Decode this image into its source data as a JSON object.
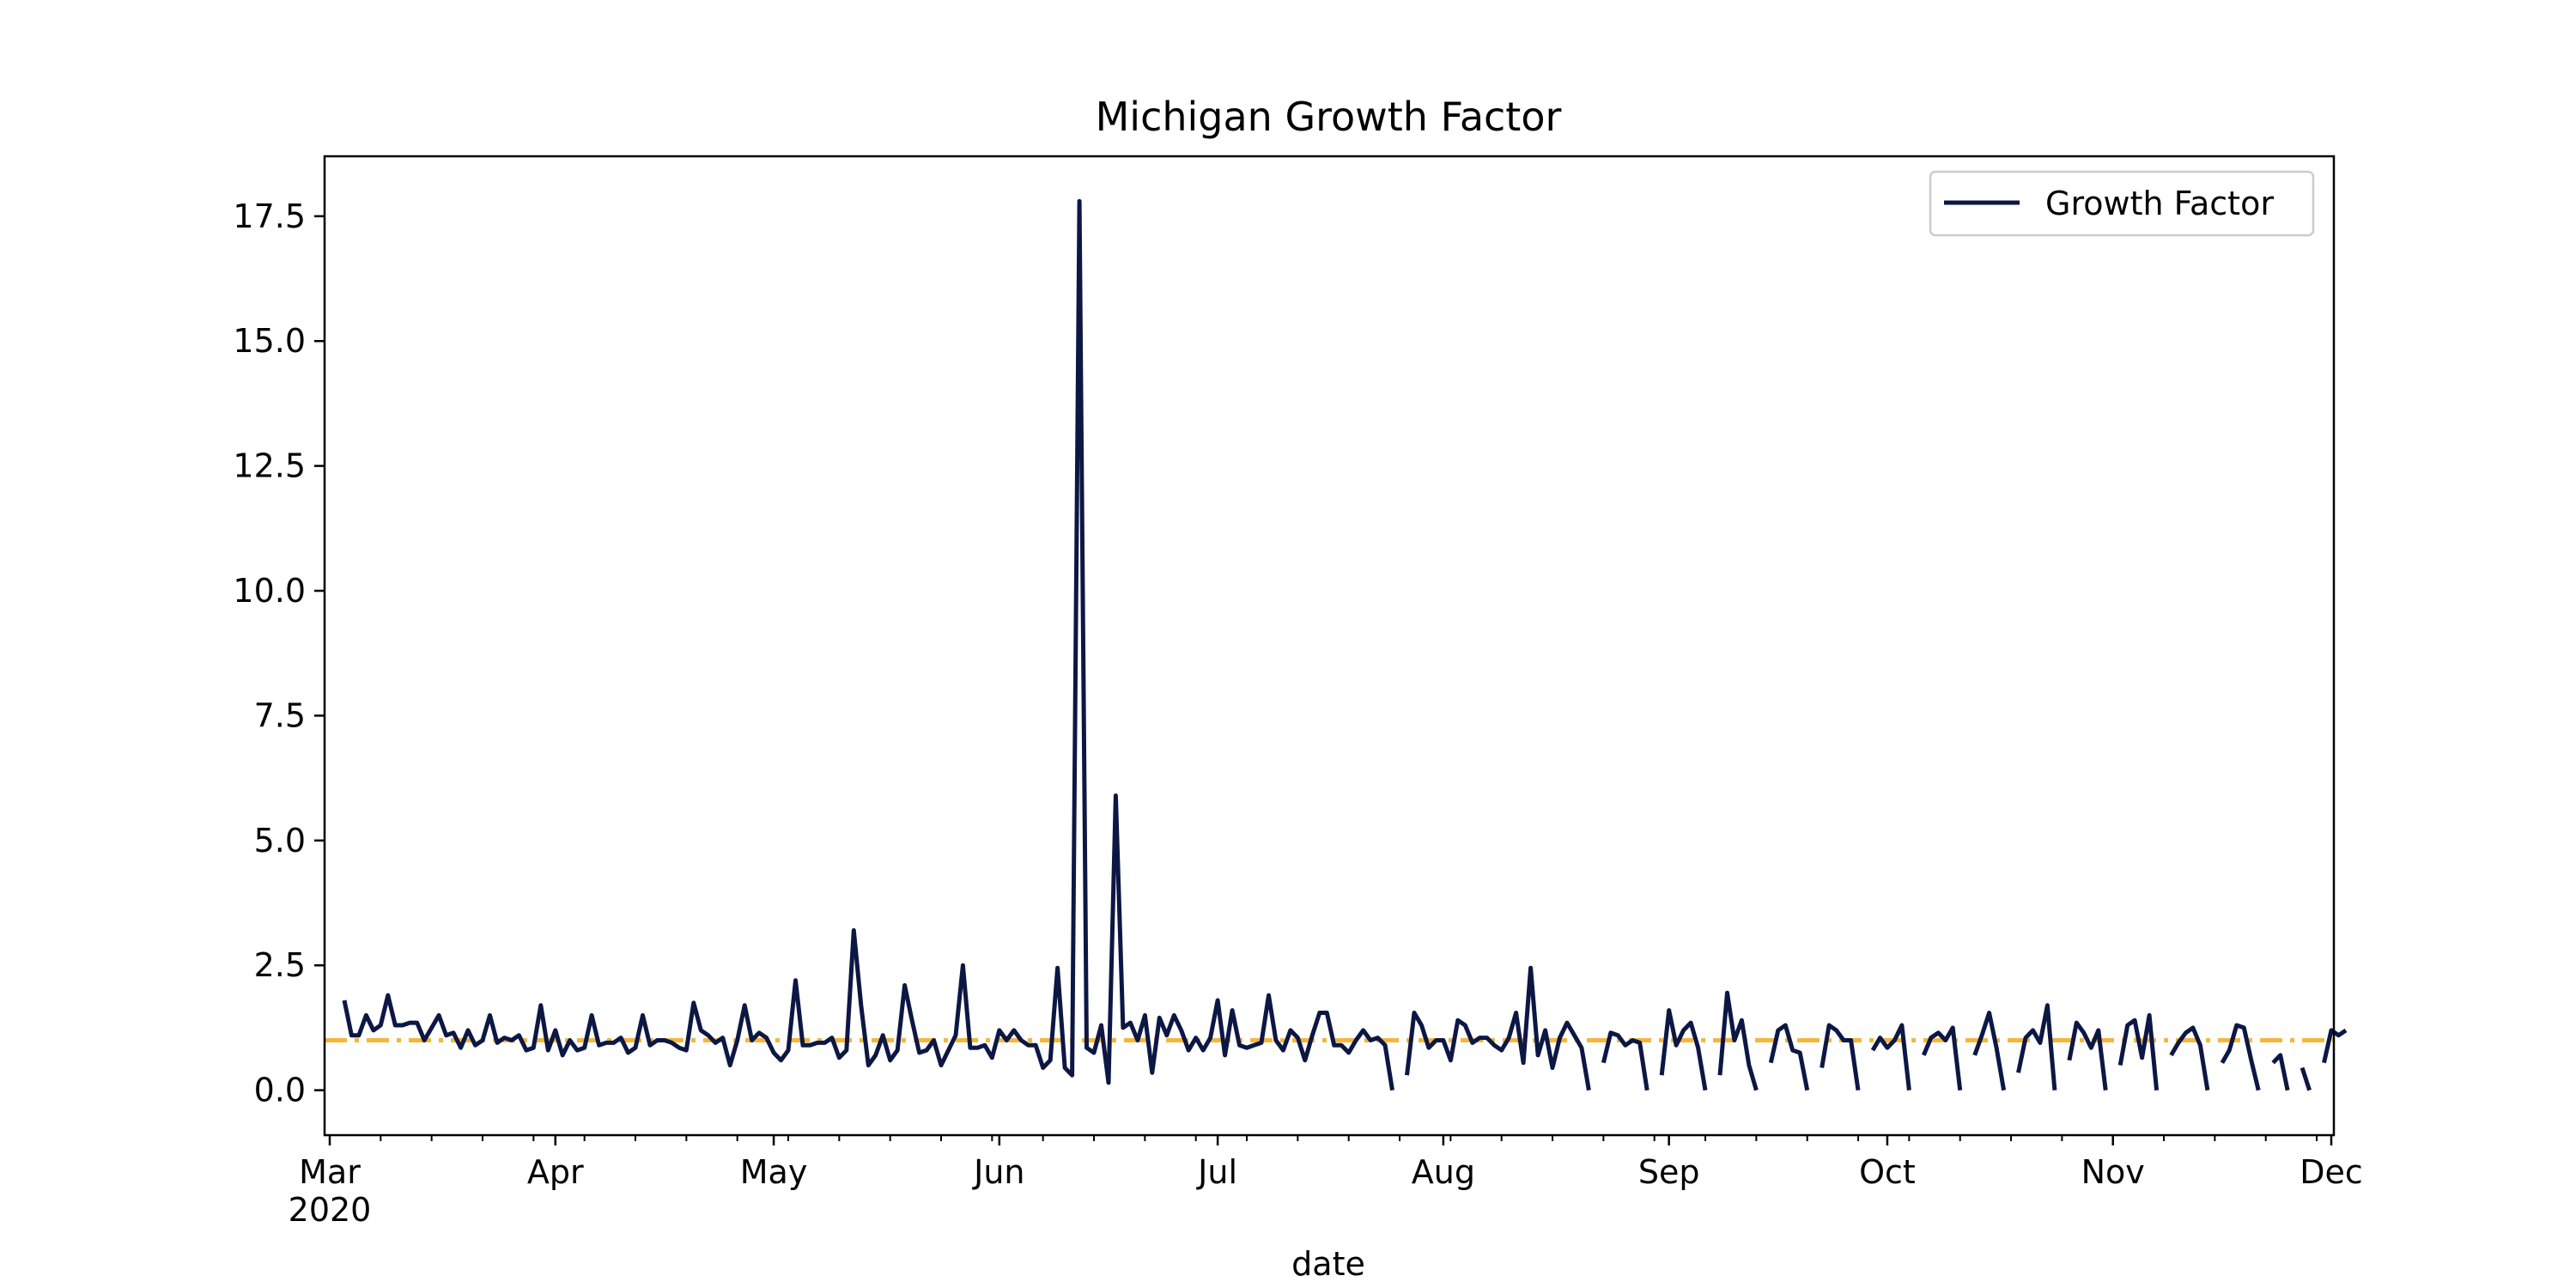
{
  "chart_data": {
    "type": "line",
    "title": "Michigan Growth Factor",
    "xlabel": "date",
    "ylabel": "",
    "xlim": [
      "2020-03-01",
      "2020-12-01"
    ],
    "ylim": [
      -0.9,
      18.7
    ],
    "yticks": [
      0.0,
      2.5,
      5.0,
      7.5,
      10.0,
      12.5,
      15.0,
      17.5
    ],
    "ytick_labels": [
      "0.0",
      "2.5",
      "5.0",
      "7.5",
      "10.0",
      "12.5",
      "15.0",
      "17.5"
    ],
    "xticks": [
      {
        "date": "2020-03-01",
        "label": "Mar",
        "sublabel": "2020"
      },
      {
        "date": "2020-04-01",
        "label": "Apr"
      },
      {
        "date": "2020-05-01",
        "label": "May"
      },
      {
        "date": "2020-06-01",
        "label": "Jun"
      },
      {
        "date": "2020-07-01",
        "label": "Jul"
      },
      {
        "date": "2020-08-01",
        "label": "Aug"
      },
      {
        "date": "2020-09-01",
        "label": "Sep"
      },
      {
        "date": "2020-10-01",
        "label": "Oct"
      },
      {
        "date": "2020-11-01",
        "label": "Nov"
      },
      {
        "date": "2020-12-01",
        "label": "Dec"
      }
    ],
    "legend_position": "top-right",
    "grid": false,
    "reference_line": {
      "y": 1.0,
      "color": "#f4b73d",
      "style": "dash-dot"
    },
    "series": [
      {
        "name": "Growth Factor",
        "color": "#0c1744",
        "start_date": "2020-03-03",
        "values": [
          1.8,
          1.1,
          1.1,
          1.5,
          1.2,
          1.3,
          1.9,
          1.3,
          1.3,
          1.35,
          1.35,
          1.0,
          1.25,
          1.5,
          1.1,
          1.15,
          0.85,
          1.2,
          0.9,
          1.0,
          1.5,
          0.95,
          1.05,
          1.0,
          1.1,
          0.8,
          0.85,
          1.7,
          0.8,
          1.2,
          0.7,
          1.0,
          0.8,
          0.85,
          1.5,
          0.9,
          0.95,
          0.95,
          1.05,
          0.75,
          0.85,
          1.5,
          0.9,
          1.0,
          1.0,
          0.95,
          0.85,
          0.8,
          1.75,
          1.2,
          1.1,
          0.95,
          1.05,
          0.5,
          1.0,
          1.7,
          1.0,
          1.15,
          1.05,
          0.75,
          0.6,
          0.8,
          2.2,
          0.9,
          0.9,
          0.95,
          0.95,
          1.05,
          0.65,
          0.8,
          3.2,
          1.7,
          0.5,
          0.7,
          1.1,
          0.6,
          0.8,
          2.1,
          1.4,
          0.75,
          0.8,
          1.0,
          0.5,
          0.8,
          1.1,
          2.5,
          0.85,
          0.85,
          0.9,
          0.65,
          1.2,
          1.0,
          1.2,
          1.0,
          0.9,
          0.9,
          0.45,
          0.6,
          2.45,
          0.45,
          0.3,
          17.8,
          0.85,
          0.75,
          1.3,
          0.15,
          5.9,
          1.25,
          1.35,
          1.0,
          1.5,
          0.35,
          1.45,
          1.1,
          1.5,
          1.2,
          0.8,
          1.05,
          0.8,
          1.05,
          1.8,
          0.7,
          1.6,
          0.9,
          0.85,
          0.9,
          0.95,
          1.9,
          1.0,
          0.8,
          1.2,
          1.05,
          0.6,
          1.1,
          1.55,
          1.55,
          0.9,
          0.9,
          0.75,
          1.0,
          1.2,
          1.0,
          1.05,
          0.9,
          0.0,
          null,
          0.3,
          1.55,
          1.3,
          0.85,
          1.0,
          1.0,
          0.6,
          1.4,
          1.3,
          0.95,
          1.05,
          1.05,
          0.9,
          0.8,
          1.05,
          1.55,
          0.55,
          2.45,
          0.7,
          1.2,
          0.45,
          1.05,
          1.35,
          1.1,
          0.85,
          0.0,
          null,
          0.55,
          1.15,
          1.1,
          0.9,
          1.0,
          0.95,
          0.0,
          null,
          0.3,
          1.6,
          0.9,
          1.2,
          1.35,
          0.85,
          0.0,
          null,
          0.3,
          1.95,
          1.0,
          1.4,
          0.5,
          0.0,
          null,
          0.55,
          1.2,
          1.3,
          0.8,
          0.75,
          0.0,
          null,
          0.45,
          1.3,
          1.2,
          1.0,
          1.0,
          0.0,
          null,
          0.8,
          1.05,
          0.85,
          1.0,
          1.3,
          0.0,
          null,
          0.7,
          1.05,
          1.15,
          1.0,
          1.25,
          0.0,
          null,
          0.7,
          1.1,
          1.55,
          0.85,
          0.0,
          null,
          0.35,
          1.05,
          1.2,
          0.95,
          1.7,
          0.0,
          null,
          0.6,
          1.35,
          1.15,
          0.85,
          1.2,
          0.0,
          null,
          0.5,
          1.3,
          1.4,
          0.65,
          1.5,
          0.0,
          null,
          0.7,
          0.95,
          1.15,
          1.25,
          0.9,
          0.0,
          null,
          0.55,
          0.8,
          1.3,
          1.25,
          0.6,
          0.0,
          null,
          0.55,
          0.7,
          0.0,
          null,
          0.45,
          0.0,
          null,
          0.55,
          1.2,
          1.1,
          1.2
        ]
      }
    ]
  }
}
